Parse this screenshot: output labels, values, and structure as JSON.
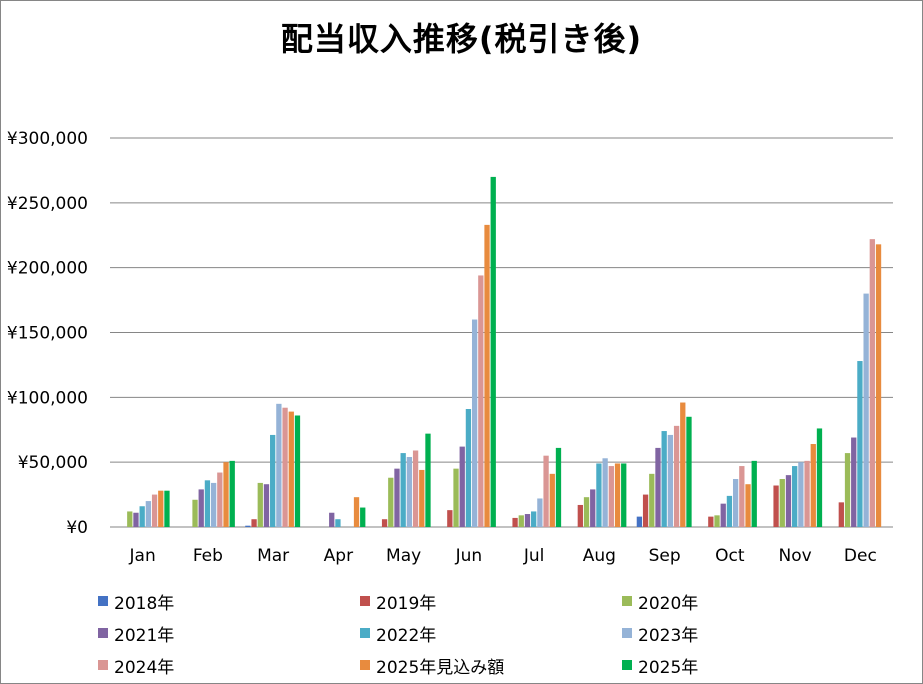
{
  "chart_data": {
    "type": "bar",
    "title": "配当収入推移(税引き後)",
    "categories": [
      "Jan",
      "Feb",
      "Mar",
      "Apr",
      "May",
      "Jun",
      "Jul",
      "Aug",
      "Sep",
      "Oct",
      "Nov",
      "Dec"
    ],
    "ylim": [
      0,
      300000
    ],
    "yticks": [
      0,
      50000,
      100000,
      150000,
      200000,
      250000,
      300000
    ],
    "ytick_labels": [
      "¥0",
      "¥50,000",
      "¥100,000",
      "¥150,000",
      "¥200,000",
      "¥250,000",
      "¥300,000"
    ],
    "grid": true,
    "legend_position": "bottom",
    "series": [
      {
        "name": "2018年",
        "color": "#4472C4",
        "values": [
          0,
          0,
          1000,
          0,
          0,
          0,
          0,
          0,
          8000,
          0,
          0,
          0
        ]
      },
      {
        "name": "2019年",
        "color": "#C0504D",
        "values": [
          0,
          0,
          6000,
          0,
          6000,
          13000,
          7000,
          17000,
          25000,
          8000,
          32000,
          19000
        ]
      },
      {
        "name": "2020年",
        "color": "#9BBB59",
        "values": [
          12000,
          21000,
          34000,
          0,
          38000,
          45000,
          9000,
          23000,
          41000,
          9000,
          37000,
          57000
        ]
      },
      {
        "name": "2021年",
        "color": "#8064A2",
        "values": [
          11000,
          29000,
          33000,
          11000,
          45000,
          62000,
          10000,
          29000,
          61000,
          18000,
          40000,
          69000
        ]
      },
      {
        "name": "2022年",
        "color": "#4BACC6",
        "values": [
          16000,
          36000,
          71000,
          6000,
          57000,
          91000,
          12000,
          49000,
          74000,
          24000,
          47000,
          128000
        ]
      },
      {
        "name": "2023年",
        "color": "#95B3D7",
        "values": [
          20000,
          34000,
          95000,
          0,
          54000,
          160000,
          22000,
          53000,
          71000,
          37000,
          50000,
          180000
        ]
      },
      {
        "name": "2024年",
        "color": "#DA9694",
        "values": [
          25000,
          42000,
          92000,
          0,
          59000,
          194000,
          55000,
          47000,
          78000,
          47000,
          51000,
          222000
        ]
      },
      {
        "name": "2025年見込み額",
        "color": "#E88B3E",
        "values": [
          28000,
          50000,
          89000,
          23000,
          44000,
          233000,
          41000,
          49000,
          96000,
          33000,
          64000,
          218000
        ]
      },
      {
        "name": "2025年",
        "color": "#00B050",
        "values": [
          28000,
          51000,
          86000,
          15000,
          72000,
          270000,
          61000,
          49000,
          85000,
          51000,
          76000,
          null
        ]
      }
    ]
  }
}
